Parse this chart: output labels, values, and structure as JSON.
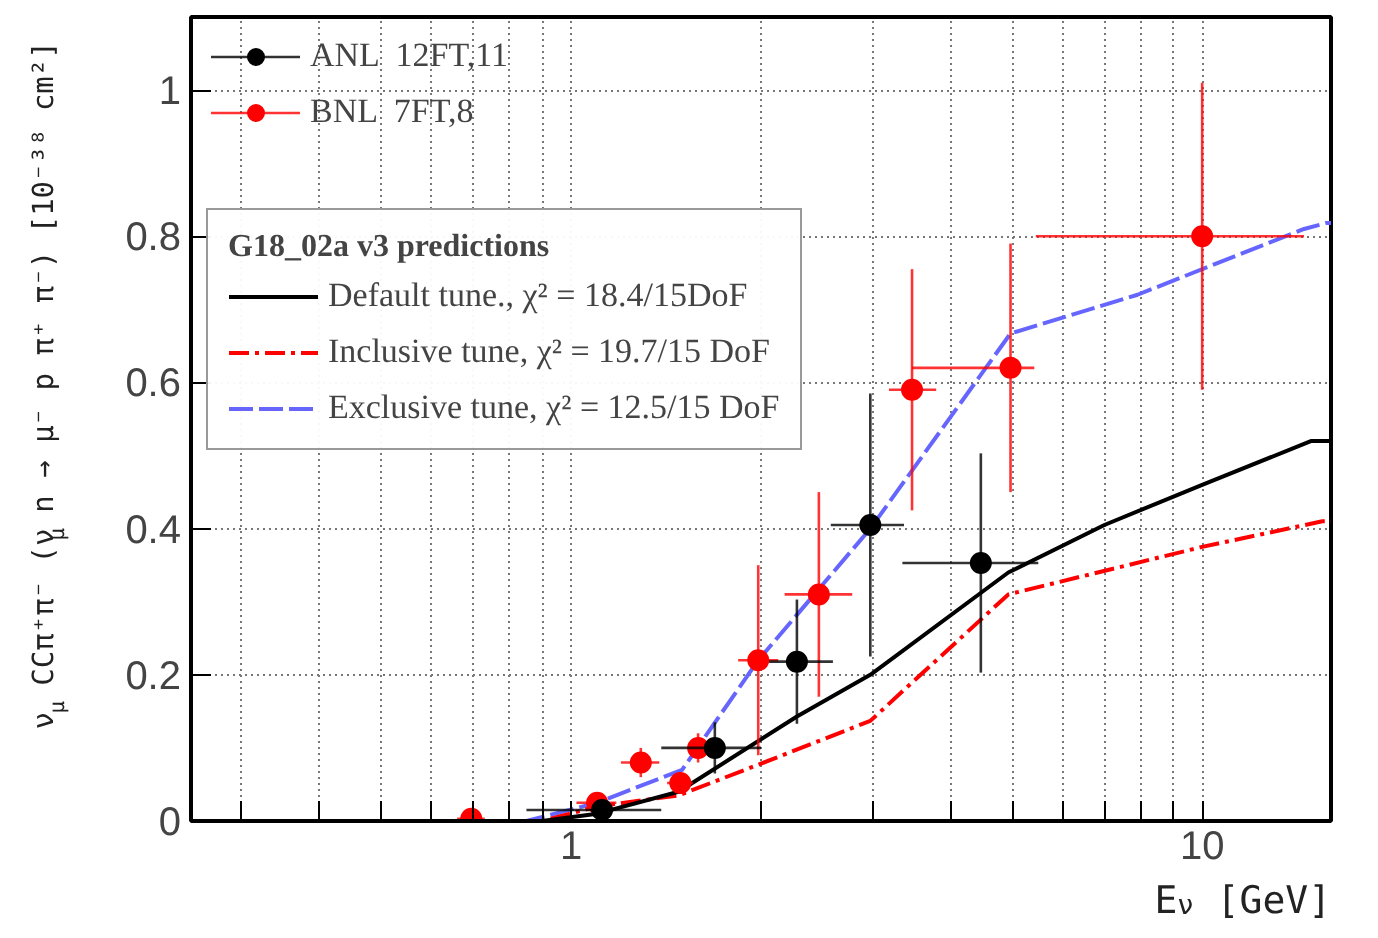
{
  "chart_data": {
    "type": "scatter",
    "xlabel": "E$_{ν}$ [GeV]",
    "ylabel": "ν$_{μ}$ CCπ⁺π⁻ (ν$_{μ}$ n → μ⁻ p π⁺ π⁻) [10⁻³⁸ cm²]",
    "legend_title": "G18_02a v3 predictions",
    "log": "x",
    "grid": true,
    "legend": "top left",
    "xlim": [
      0.25,
      16
    ],
    "ylim": [
      0,
      1.1
    ],
    "xticks": [
      {
        "value": 0.3,
        "label": null
      },
      {
        "value": 0.4,
        "label": null
      },
      {
        "value": 0.5,
        "label": null
      },
      {
        "value": 0.6,
        "label": null
      },
      {
        "value": 0.7,
        "label": null
      },
      {
        "value": 0.8,
        "label": null
      },
      {
        "value": 0.9,
        "label": null
      },
      1,
      {
        "value": 2,
        "label": null
      },
      {
        "value": 3,
        "label": null
      },
      {
        "value": 4,
        "label": null
      },
      {
        "value": 5,
        "label": null
      },
      {
        "value": 6,
        "label": null
      },
      {
        "value": 7,
        "label": null
      },
      {
        "value": 8,
        "label": null
      },
      {
        "value": 9,
        "label": null
      },
      10
    ],
    "yticks": [
      0,
      0.2,
      0.4,
      0.6,
      0.8,
      1
    ],
    "series": [
      {
        "name": "ANL  12FT,11",
        "marker": "circle",
        "color": "#000000",
        "x": [
          1.12,
          1.69,
          2.28,
          2.98,
          4.46
        ],
        "values": [
          0.015,
          0.1,
          0.218,
          0.405,
          0.353
        ],
        "errors": [
          0.01,
          0.035,
          0.085,
          0.18,
          0.15
        ],
        "xerrors": [
          [
            0.85,
            1.39
          ],
          [
            1.39,
            2.0
          ],
          [
            2.06,
            2.6
          ],
          [
            2.58,
            3.37
          ],
          [
            3.35,
            5.5
          ]
        ]
      },
      {
        "name": "BNL  7FT,8",
        "marker": "circle",
        "color": "#ff0000",
        "x": [
          0.695,
          1.1,
          1.29,
          1.49,
          1.59,
          1.98,
          2.47,
          3.47,
          4.97,
          10.0
        ],
        "values": [
          0.003,
          0.025,
          0.08,
          0.052,
          0.1,
          0.22,
          0.31,
          0.59,
          0.62,
          0.8
        ],
        "errors": [
          0.005,
          0.01,
          0.02,
          0.015,
          0.02,
          0.13,
          0.14,
          0.165,
          0.17,
          0.21
        ],
        "xerrors": [
          [
            0.66,
            0.73
          ],
          [
            1.02,
            1.18
          ],
          [
            1.2,
            1.38
          ],
          [
            1.42,
            1.56
          ],
          null,
          [
            1.84,
            2.13
          ],
          [
            2.18,
            2.79
          ],
          [
            3.19,
            3.79
          ],
          [
            3.47,
            5.42
          ],
          [
            5.45,
            14.5
          ]
        ]
      },
      {
        "name": "Default tune., χ² = 18.4/15DoF",
        "type": "line",
        "line_style": "solid",
        "color": "#000000",
        "x": [
          0.25,
          0.9,
          1.1,
          1.48,
          2.28,
          2.98,
          4.93,
          7.0,
          10,
          14.9,
          16
        ],
        "values": [
          0,
          0,
          0.01,
          0.04,
          0.143,
          0.2,
          0.34,
          0.405,
          0.46,
          0.52,
          0.52
        ]
      },
      {
        "name": "Inclusive tune, χ² = 19.7/15 DoF",
        "type": "line",
        "line_style": "dashdot",
        "color": "#ff0000",
        "x": [
          0.25,
          0.9,
          1.1,
          1.48,
          1.98,
          2.98,
          4.93,
          10,
          15.5,
          16
        ],
        "values": [
          0,
          0,
          0.02,
          0.035,
          0.077,
          0.137,
          0.31,
          0.375,
          0.41,
          0.41
        ]
      },
      {
        "name": "Exclusive tune, χ² = 12.5/15 DoF",
        "type": "line",
        "line_style": "dashed",
        "color": "#6666ff",
        "x": [
          0.25,
          0.85,
          1.1,
          1.5,
          1.98,
          2.98,
          4.97,
          7.9,
          14.5,
          15.7,
          16
        ],
        "values": [
          0,
          0,
          0.025,
          0.07,
          0.22,
          0.4,
          0.667,
          0.72,
          0.81,
          0.818,
          0.818
        ]
      }
    ]
  }
}
